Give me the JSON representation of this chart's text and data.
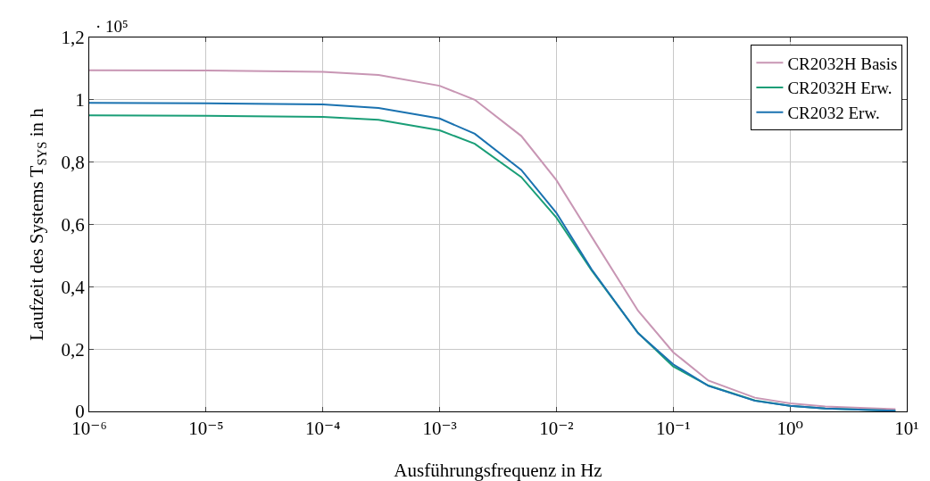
{
  "chart_data": {
    "type": "line",
    "xlabel": "Ausführungsfrequenz in Hz",
    "ylabel": "Laufzeit des Systems T$_{SYS}$ in h",
    "annotations": [
      "· 10⁵"
    ],
    "x": [
      1e-06,
      1e-05,
      0.0001,
      0.0003,
      0.001,
      0.002,
      0.005,
      0.01,
      0.02,
      0.05,
      0.1,
      0.2,
      0.5,
      1,
      2,
      5,
      8
    ],
    "series": [
      {
        "name": "CR2032H Basis",
        "color": "#c896b4",
        "values": [
          1.095,
          1.094,
          1.09,
          1.08,
          1.045,
          1.0,
          0.884,
          0.742,
          0.561,
          0.323,
          0.19,
          0.099,
          0.044,
          0.026,
          0.016,
          0.01,
          0.007
        ]
      },
      {
        "name": "CR2032H Erw.",
        "color": "#1a9e77",
        "values": [
          0.95,
          0.949,
          0.945,
          0.936,
          0.902,
          0.859,
          0.752,
          0.622,
          0.453,
          0.252,
          0.144,
          0.083,
          0.035,
          0.018,
          0.009,
          0.004,
          0.002
        ]
      },
      {
        "name": "CR2032 Erw.",
        "color": "#1a72b0",
        "values": [
          0.99,
          0.989,
          0.985,
          0.974,
          0.94,
          0.891,
          0.775,
          0.637,
          0.456,
          0.251,
          0.151,
          0.082,
          0.034,
          0.018,
          0.009,
          0.004,
          0.002
        ]
      }
    ],
    "log": "x",
    "xlim": [
      1e-06,
      10
    ],
    "xticks": [
      {
        "value": 1e-06,
        "label": "10⁻⁶"
      },
      {
        "value": 1e-05,
        "label": "10⁻⁵"
      },
      {
        "value": 0.0001,
        "label": "10⁻⁴"
      },
      {
        "value": 0.001,
        "label": "10⁻³"
      },
      {
        "value": 0.01,
        "label": "10⁻²"
      },
      {
        "value": 0.1,
        "label": "10⁻¹"
      },
      {
        "value": 1,
        "label": "10⁰"
      },
      {
        "value": 10,
        "label": "10¹"
      }
    ],
    "ylim": [
      0,
      1.2
    ],
    "yticks": [
      0,
      {
        "value": 0.2,
        "label": "0,2"
      },
      {
        "value": 0.4,
        "label": "0,4"
      },
      {
        "value": 0.6,
        "label": "0,6"
      },
      {
        "value": 0.8,
        "label": "0,8"
      },
      1,
      {
        "value": 1.2,
        "label": "1,2"
      }
    ],
    "grid": true,
    "legend": "top right",
    "marker": "none",
    "line_style": "solid"
  }
}
